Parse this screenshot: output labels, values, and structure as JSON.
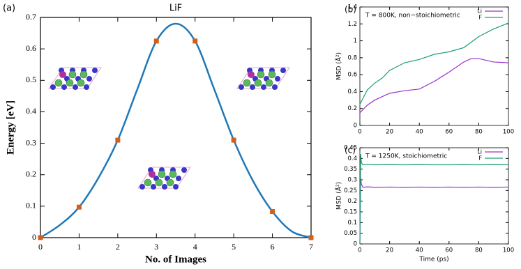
{
  "chart_data": [
    {
      "type": "line",
      "panel_label": "(a)",
      "title": "LiF",
      "xlabel": "No. of Images",
      "ylabel": "Energy [eV]",
      "xlim": [
        0,
        7
      ],
      "ylim": [
        0,
        0.7
      ],
      "xticks": [
        0,
        1,
        2,
        3,
        4,
        5,
        6,
        7
      ],
      "yticks": [
        0,
        0.1,
        0.2,
        0.3,
        0.4,
        0.5,
        0.6,
        0.7
      ],
      "series": [
        {
          "type": "line",
          "color": "#1f78b8",
          "smooth": true,
          "x": [
            0,
            0.5,
            1,
            1.5,
            2,
            2.5,
            3,
            3.5,
            4,
            4.5,
            5,
            5.5,
            6,
            6.5,
            7
          ],
          "values": [
            0,
            0.04,
            0.097,
            0.19,
            0.31,
            0.47,
            0.625,
            0.68,
            0.625,
            0.47,
            0.31,
            0.18,
            0.083,
            0.02,
            0
          ]
        },
        {
          "type": "scatter",
          "color": "#d2601a",
          "x": [
            0,
            1,
            2,
            3,
            4,
            5,
            6,
            7
          ],
          "values": [
            0,
            0.097,
            0.31,
            0.625,
            0.625,
            0.31,
            0.083,
            0
          ]
        }
      ]
    },
    {
      "type": "line",
      "panel_label": "(b)",
      "annotation": "T = 800K, non−stoichiometric",
      "ylabel": "MSD (Å²)",
      "xlim": [
        0,
        100
      ],
      "ylim": [
        0,
        1.4
      ],
      "xticks": [
        0,
        20,
        40,
        60,
        80,
        100
      ],
      "yticks": [
        0,
        0.2,
        0.4,
        0.6,
        0.8,
        1,
        1.2,
        1.4
      ],
      "legend": "upper right",
      "series": [
        {
          "name": "Li",
          "color": "#9a32cd",
          "x": [
            0,
            5,
            10,
            15,
            20,
            30,
            40,
            50,
            60,
            70,
            75,
            80,
            90,
            100
          ],
          "values": [
            0.15,
            0.24,
            0.3,
            0.34,
            0.38,
            0.41,
            0.43,
            0.52,
            0.63,
            0.75,
            0.79,
            0.79,
            0.75,
            0.74
          ]
        },
        {
          "name": "F",
          "color": "#1a9e77",
          "x": [
            0,
            5,
            10,
            15,
            20,
            30,
            40,
            50,
            60,
            70,
            80,
            90,
            100
          ],
          "values": [
            0.25,
            0.42,
            0.5,
            0.56,
            0.65,
            0.74,
            0.78,
            0.84,
            0.87,
            0.92,
            1.05,
            1.14,
            1.21
          ]
        }
      ]
    },
    {
      "type": "line",
      "panel_label": "(c)",
      "annotation": "T = 1250K, stoichiometric",
      "xlabel": "Time (ps)",
      "ylabel": "MSD (Å²)",
      "xlim": [
        0,
        100
      ],
      "ylim": [
        0,
        0.45
      ],
      "xticks": [
        0,
        20,
        40,
        60,
        80,
        100
      ],
      "yticks": [
        0,
        0.05,
        0.1,
        0.15,
        0.2,
        0.25,
        0.3,
        0.35,
        0.4,
        0.45
      ],
      "legend": "upper right",
      "series": [
        {
          "name": "Li",
          "color": "#9a32cd",
          "x": [
            0,
            0.5,
            1,
            2,
            5,
            10,
            20,
            30,
            40,
            50,
            60,
            70,
            80,
            90,
            100
          ],
          "values": [
            0,
            0.31,
            0.28,
            0.265,
            0.267,
            0.265,
            0.266,
            0.265,
            0.266,
            0.265,
            0.266,
            0.265,
            0.266,
            0.265,
            0.266
          ]
        },
        {
          "name": "F",
          "color": "#1a9e77",
          "x": [
            0,
            0.5,
            1,
            2,
            5,
            10,
            20,
            30,
            40,
            50,
            60,
            70,
            80,
            90,
            100
          ],
          "values": [
            0,
            0.42,
            0.38,
            0.37,
            0.372,
            0.37,
            0.371,
            0.37,
            0.371,
            0.37,
            0.37,
            0.371,
            0.37,
            0.371,
            0.37
          ]
        }
      ]
    }
  ]
}
